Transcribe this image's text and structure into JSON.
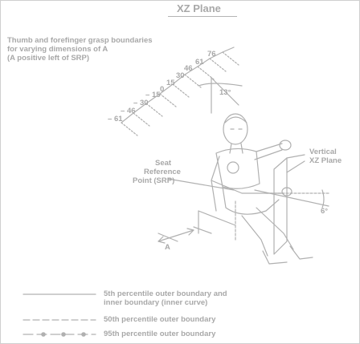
{
  "title": "XZ Plane",
  "annotation": {
    "line1": "Thumb and forefinger grasp boundaries",
    "line2": "for varying dimensions of A",
    "line3": "(A positive left of SRP)"
  },
  "scale_ticks": [
    "76",
    "61",
    "46",
    "30",
    "15",
    "0",
    "15",
    "30",
    "46",
    "61"
  ],
  "scale_signs": [
    "",
    "",
    "",
    "",
    "",
    "",
    "– ",
    "– ",
    "– ",
    "– "
  ],
  "angles": {
    "upper": "13°",
    "lower": "6°"
  },
  "labels": {
    "srp_line1": "Seat",
    "srp_line2": "Reference",
    "srp_line3": "Point (SRP)",
    "vertical_line1": "Vertical",
    "vertical_line2": "XZ Plane",
    "dimension_a": "A"
  },
  "legend": [
    {
      "style": "solid",
      "text1": "5th percentile outer boundary and",
      "text2": "inner boundary (inner curve)"
    },
    {
      "style": "dashed",
      "text1": "50th percentile outer boundary",
      "text2": ""
    },
    {
      "style": "dash-dot",
      "text1": "95th percentile outer boundary",
      "text2": ""
    }
  ],
  "ink_color": "#a8a8a8"
}
